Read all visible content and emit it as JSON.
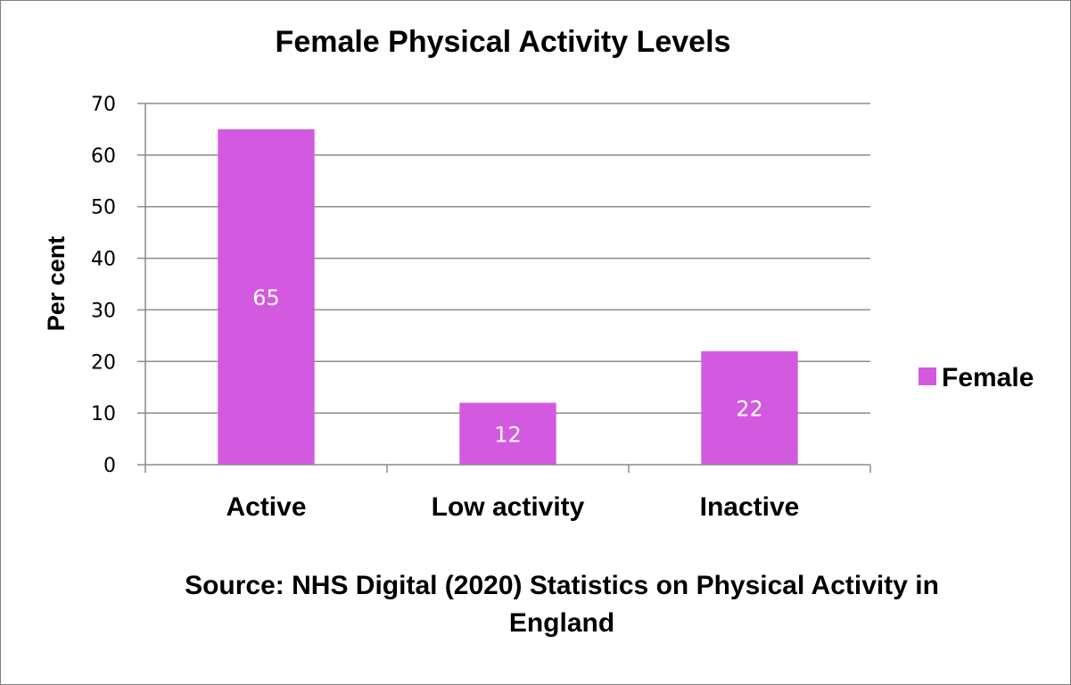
{
  "chart_data": {
    "type": "bar",
    "title": "Female Physical Activity Levels",
    "ylabel": "Per cent",
    "xlabel": "",
    "categories": [
      "Active",
      "Low activity",
      "Inactive"
    ],
    "series": [
      {
        "name": "Female",
        "values": [
          65,
          12,
          22
        ],
        "color": "#d35ae0"
      }
    ],
    "ylim": [
      0,
      70
    ],
    "yticks": [
      0,
      10,
      20,
      30,
      40,
      50,
      60,
      70
    ],
    "grid": true,
    "legend": "right",
    "data_labels": true
  },
  "source_lines": [
    "Source: NHS Digital (2020) Statistics on Physical Activity in",
    "England"
  ]
}
